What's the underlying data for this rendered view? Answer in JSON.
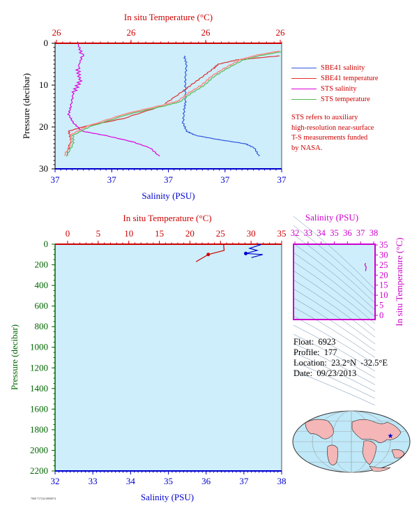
{
  "colors": {
    "plot_bg": "#cdeefa",
    "temp_axis": "#cc0000",
    "sal_axis": "#0000cc",
    "pressure_axis": "#006600",
    "ts_axis": "#cc00cc",
    "sbe_sal": "#3355dd",
    "sbe_temp": "#e03030",
    "sts_sal": "#dd00dd",
    "sts_temp": "#55bb55",
    "sts_temp_pink": "#ff8888"
  },
  "top_chart": {
    "temp_axis_title": "In situ Temperature (°C)",
    "temp_ticks": [
      "26",
      "26",
      "26",
      "26"
    ],
    "sal_axis_title": "Salinity (PSU)",
    "sal_ticks": [
      "37",
      "37",
      "37",
      "37",
      "37"
    ],
    "pressure_axis_title": "Pressure (decibar)",
    "pressure_ticks": [
      "0",
      "10",
      "20",
      "30"
    ]
  },
  "legend": {
    "items": [
      {
        "label": "SBE41 salinity",
        "color": "#3355dd"
      },
      {
        "label": "SBE41 temperature",
        "color": "#e03030"
      },
      {
        "label": "STS salinity",
        "color": "#dd00dd"
      },
      {
        "label": "STS temperature",
        "color": "#55bb55"
      }
    ],
    "note_lines": [
      "STS refers to auxiliary",
      "high-resolution near-surface",
      "T-S measurements funded",
      "by NASA."
    ]
  },
  "bottom_chart": {
    "temp_axis_title": "In situ Temperature (°C)",
    "temp_ticks": [
      "0",
      "5",
      "10",
      "15",
      "20",
      "25",
      "30",
      "35"
    ],
    "sal_axis_title": "Salinity (PSU)",
    "sal_ticks": [
      "32",
      "33",
      "34",
      "35",
      "36",
      "37",
      "38"
    ],
    "pressure_axis_title": "Pressure (decibar)",
    "pressure_ticks": [
      "0",
      "200",
      "400",
      "600",
      "800",
      "1000",
      "1200",
      "1400",
      "1600",
      "1800",
      "2000",
      "2200"
    ]
  },
  "ts_chart": {
    "sal_axis_title": "Salinity (PSU)",
    "sal_ticks": [
      "32",
      "33",
      "34",
      "35",
      "36",
      "37",
      "38"
    ],
    "temp_axis_title": "In situ Temperature (°C)",
    "temp_ticks": [
      "0",
      "5",
      "10",
      "15",
      "20",
      "25",
      "30",
      "35"
    ]
  },
  "float_info": {
    "float": "Float:  6923",
    "profile": "Profile:  177",
    "location": "Location:  23.2°N  -32.5°E",
    "date": "Date:  09/23/2013"
  },
  "footer_tiny": "7000 717234 0000074",
  "chart_data": [
    {
      "type": "line",
      "title": "",
      "xlabel": "Salinity (PSU)",
      "x2label": "In situ Temperature (°C)",
      "ylabel": "Pressure (decibar)",
      "ylim": [
        30,
        0
      ],
      "series": [
        {
          "name": "SBE41 salinity",
          "x_frac": [
            0.57,
            0.58,
            0.575,
            0.575,
            0.575,
            0.57,
            0.565,
            0.58,
            0.62,
            0.72,
            0.84,
            0.88,
            0.9
          ],
          "y": [
            3,
            5,
            8,
            11,
            14,
            16,
            19,
            21,
            22,
            23,
            24,
            25,
            27
          ]
        },
        {
          "name": "SBE41 temperature",
          "x_frac": [
            0.99,
            0.8,
            0.72,
            0.7,
            0.65,
            0.6,
            0.55,
            0.47,
            0.3,
            0.12,
            0.06,
            0.07,
            0.05
          ],
          "y": [
            3,
            4,
            5,
            6,
            8,
            10,
            12,
            15,
            18,
            20,
            21,
            23,
            27
          ]
        },
        {
          "name": "STS salinity",
          "x_frac": [
            0.1,
            0.12,
            0.1,
            0.11,
            0.08,
            0.07,
            0.06,
            0.08,
            0.12,
            0.22,
            0.34,
            0.42,
            0.46
          ],
          "y": [
            0,
            3,
            6,
            9,
            12,
            15,
            17,
            19,
            21,
            22,
            23.5,
            25,
            27
          ]
        },
        {
          "name": "STS temperature",
          "x_frac": [
            1.0,
            0.9,
            0.83,
            0.76,
            0.7,
            0.66,
            0.6,
            0.55,
            0.48,
            0.32,
            0.15,
            0.08,
            0.08,
            0.05
          ],
          "y": [
            2,
            3,
            4,
            6,
            8,
            10,
            12,
            14,
            15,
            17,
            20,
            22,
            24,
            27
          ]
        }
      ]
    },
    {
      "type": "line",
      "title": "",
      "xlabel": "Salinity (PSU)",
      "x2label": "In situ Temperature (°C)",
      "ylabel": "Pressure (decibar)",
      "xlim": [
        32,
        38
      ],
      "x2lim": [
        0,
        35
      ],
      "ylim": [
        2200,
        0
      ],
      "series": [
        {
          "name": "Temperature",
          "x2": [
            26,
            25.5,
            25.6,
            23,
            21
          ],
          "y": [
            0,
            5,
            60,
            100,
            170
          ]
        },
        {
          "name": "Salinity",
          "x": [
            37.35,
            37.45,
            37.15,
            37.35,
            37.05,
            37.5,
            37.2
          ],
          "y": [
            0,
            5,
            40,
            60,
            90,
            100,
            130
          ]
        }
      ]
    },
    {
      "type": "scatter",
      "title": "",
      "xlabel": "Salinity (PSU)",
      "ylabel": "In situ Temperature (°C)",
      "xlim": [
        32,
        38
      ],
      "ylim": [
        -3,
        35
      ],
      "series": [
        {
          "name": "T-S",
          "x": [
            37.3,
            37.35,
            37.25,
            37.3
          ],
          "y": [
            22,
            24,
            25,
            26
          ]
        }
      ]
    }
  ]
}
